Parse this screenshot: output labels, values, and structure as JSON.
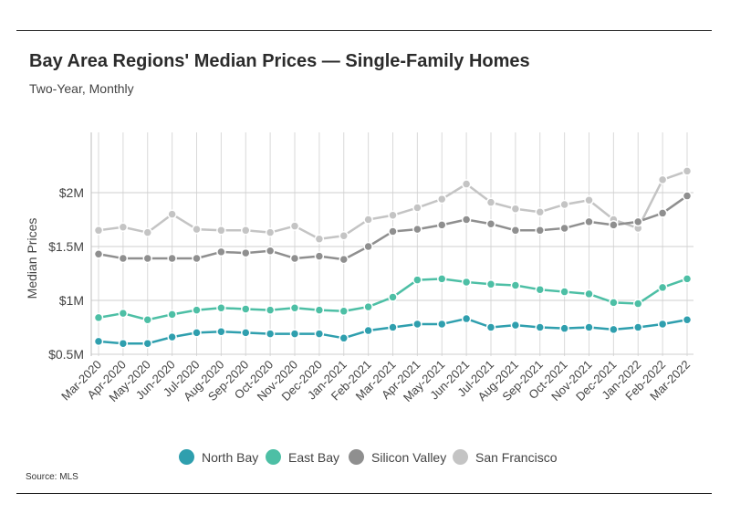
{
  "header": {
    "title": "Bay Area Regions' Median Prices — Single-Family Homes",
    "subtitle": "Two-Year, Monthly"
  },
  "footer": {
    "source": "Source:  MLS"
  },
  "chart_data": {
    "type": "line",
    "title": "Bay Area Regions' Median Prices — Single-Family Homes",
    "subtitle": "Two-Year, Monthly",
    "xlabel": "",
    "ylabel": "Median Prices",
    "y_ticks": [
      500000,
      1000000,
      1500000,
      2000000
    ],
    "y_tick_labels": [
      "$0.5M",
      "$1M",
      "$1.5M",
      "$2M"
    ],
    "ylim": [
      420000,
      2250000
    ],
    "grid": "vertical and horizontal",
    "legend_position": "bottom",
    "categories": [
      "Mar-2020",
      "Apr-2020",
      "May-2020",
      "Jun-2020",
      "Jul-2020",
      "Aug-2020",
      "Sep-2020",
      "Oct-2020",
      "Nov-2020",
      "Dec-2020",
      "Jan-2021",
      "Feb-2021",
      "Mar-2021",
      "Apr-2021",
      "May-2021",
      "Jun-2021",
      "Jul-2021",
      "Aug-2021",
      "Sep-2021",
      "Oct-2021",
      "Nov-2021",
      "Dec-2021",
      "Jan-2022",
      "Feb-2022",
      "Mar-2022"
    ],
    "series": [
      {
        "name": "North Bay",
        "color": "#2f9fae",
        "values": [
          620000,
          600000,
          600000,
          660000,
          700000,
          710000,
          700000,
          690000,
          690000,
          690000,
          650000,
          720000,
          750000,
          780000,
          780000,
          830000,
          750000,
          770000,
          750000,
          740000,
          750000,
          730000,
          750000,
          780000,
          820000
        ]
      },
      {
        "name": "East Bay",
        "color": "#4dbfa5",
        "values": [
          840000,
          880000,
          820000,
          870000,
          910000,
          930000,
          920000,
          910000,
          930000,
          910000,
          900000,
          940000,
          1030000,
          1190000,
          1200000,
          1170000,
          1150000,
          1140000,
          1100000,
          1080000,
          1060000,
          980000,
          970000,
          1120000,
          1200000
        ]
      },
      {
        "name": "Silicon Valley",
        "color": "#8f8f8f",
        "values": [
          1430000,
          1390000,
          1390000,
          1390000,
          1390000,
          1450000,
          1440000,
          1460000,
          1390000,
          1410000,
          1380000,
          1500000,
          1640000,
          1660000,
          1700000,
          1750000,
          1710000,
          1650000,
          1650000,
          1670000,
          1730000,
          1700000,
          1730000,
          1810000,
          1970000
        ]
      },
      {
        "name": "San Francisco",
        "color": "#c4c4c4",
        "values": [
          1650000,
          1680000,
          1630000,
          1800000,
          1660000,
          1650000,
          1650000,
          1630000,
          1690000,
          1570000,
          1600000,
          1750000,
          1790000,
          1860000,
          1940000,
          2080000,
          1910000,
          1850000,
          1820000,
          1890000,
          1930000,
          1750000,
          1670000,
          2120000,
          2200000
        ]
      }
    ]
  }
}
